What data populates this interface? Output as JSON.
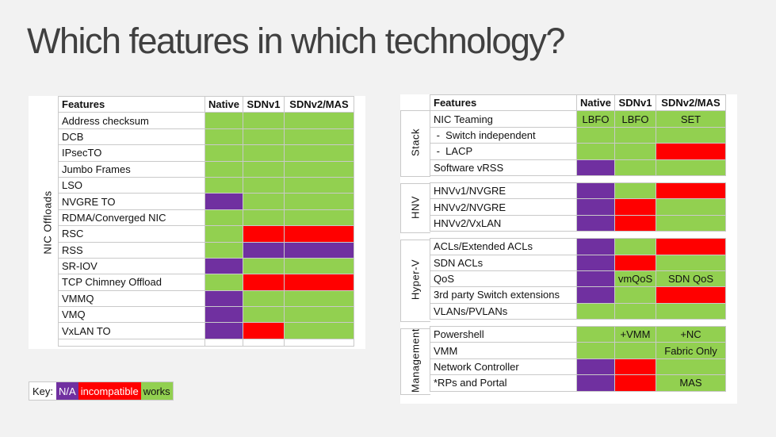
{
  "title": "Which features in which technology?",
  "headers": {
    "features": "Features",
    "native": "Native",
    "sdnv1": "SDNv1",
    "sdnv2": "SDNv2/MAS"
  },
  "left_table": {
    "group_label": "NIC Offloads",
    "rows": [
      {
        "feature": "Address checksum",
        "native": {
          "status": "works",
          "text": ""
        },
        "sdnv1": {
          "status": "works",
          "text": ""
        },
        "sdnv2": {
          "status": "works",
          "text": ""
        }
      },
      {
        "feature": "DCB",
        "native": {
          "status": "works",
          "text": ""
        },
        "sdnv1": {
          "status": "works",
          "text": ""
        },
        "sdnv2": {
          "status": "works",
          "text": ""
        }
      },
      {
        "feature": "IPsecTO",
        "native": {
          "status": "works",
          "text": ""
        },
        "sdnv1": {
          "status": "works",
          "text": ""
        },
        "sdnv2": {
          "status": "works",
          "text": ""
        }
      },
      {
        "feature": "Jumbo Frames",
        "native": {
          "status": "works",
          "text": ""
        },
        "sdnv1": {
          "status": "works",
          "text": ""
        },
        "sdnv2": {
          "status": "works",
          "text": ""
        }
      },
      {
        "feature": "LSO",
        "native": {
          "status": "works",
          "text": ""
        },
        "sdnv1": {
          "status": "works",
          "text": ""
        },
        "sdnv2": {
          "status": "works",
          "text": ""
        }
      },
      {
        "feature": "NVGRE TO",
        "native": {
          "status": "na",
          "text": ""
        },
        "sdnv1": {
          "status": "works",
          "text": ""
        },
        "sdnv2": {
          "status": "works",
          "text": ""
        }
      },
      {
        "feature": "RDMA/Converged NIC",
        "native": {
          "status": "works",
          "text": ""
        },
        "sdnv1": {
          "status": "works",
          "text": ""
        },
        "sdnv2": {
          "status": "works",
          "text": ""
        }
      },
      {
        "feature": "RSC",
        "native": {
          "status": "works",
          "text": ""
        },
        "sdnv1": {
          "status": "incompatible",
          "text": ""
        },
        "sdnv2": {
          "status": "incompatible",
          "text": ""
        }
      },
      {
        "feature": "RSS",
        "native": {
          "status": "works",
          "text": ""
        },
        "sdnv1": {
          "status": "na",
          "text": ""
        },
        "sdnv2": {
          "status": "na",
          "text": ""
        }
      },
      {
        "feature": "SR-IOV",
        "native": {
          "status": "na",
          "text": ""
        },
        "sdnv1": {
          "status": "works",
          "text": ""
        },
        "sdnv2": {
          "status": "works",
          "text": ""
        }
      },
      {
        "feature": "TCP Chimney Offload",
        "native": {
          "status": "works",
          "text": ""
        },
        "sdnv1": {
          "status": "incompatible",
          "text": ""
        },
        "sdnv2": {
          "status": "incompatible",
          "text": ""
        }
      },
      {
        "feature": "VMMQ",
        "native": {
          "status": "na",
          "text": ""
        },
        "sdnv1": {
          "status": "works",
          "text": ""
        },
        "sdnv2": {
          "status": "works",
          "text": ""
        }
      },
      {
        "feature": "VMQ",
        "native": {
          "status": "na",
          "text": ""
        },
        "sdnv1": {
          "status": "works",
          "text": ""
        },
        "sdnv2": {
          "status": "works",
          "text": ""
        }
      },
      {
        "feature": "VxLAN TO",
        "native": {
          "status": "na",
          "text": ""
        },
        "sdnv1": {
          "status": "incompatible",
          "text": ""
        },
        "sdnv2": {
          "status": "works",
          "text": ""
        }
      }
    ]
  },
  "right_table": {
    "groups": [
      {
        "label": "Stack",
        "rows": [
          {
            "feature": "NIC Teaming",
            "native": {
              "status": "works",
              "text": "LBFO"
            },
            "sdnv1": {
              "status": "works",
              "text": "LBFO"
            },
            "sdnv2": {
              "status": "works",
              "text": "SET"
            }
          },
          {
            "feature": " -  Switch independent",
            "native": {
              "status": "works",
              "text": ""
            },
            "sdnv1": {
              "status": "works",
              "text": ""
            },
            "sdnv2": {
              "status": "works",
              "text": ""
            }
          },
          {
            "feature": " -  LACP",
            "native": {
              "status": "works",
              "text": ""
            },
            "sdnv1": {
              "status": "works",
              "text": ""
            },
            "sdnv2": {
              "status": "incompatible",
              "text": ""
            }
          },
          {
            "feature": "Software vRSS",
            "native": {
              "status": "na",
              "text": ""
            },
            "sdnv1": {
              "status": "works",
              "text": ""
            },
            "sdnv2": {
              "status": "works",
              "text": ""
            }
          }
        ]
      },
      {
        "label": "HNV",
        "rows": [
          {
            "feature": "HNVv1/NVGRE",
            "native": {
              "status": "na",
              "text": ""
            },
            "sdnv1": {
              "status": "works",
              "text": ""
            },
            "sdnv2": {
              "status": "incompatible",
              "text": ""
            }
          },
          {
            "feature": "HNVv2/NVGRE",
            "native": {
              "status": "na",
              "text": ""
            },
            "sdnv1": {
              "status": "incompatible",
              "text": ""
            },
            "sdnv2": {
              "status": "works",
              "text": ""
            }
          },
          {
            "feature": "HNVv2/VxLAN",
            "native": {
              "status": "na",
              "text": ""
            },
            "sdnv1": {
              "status": "incompatible",
              "text": ""
            },
            "sdnv2": {
              "status": "works",
              "text": ""
            }
          }
        ]
      },
      {
        "label": "Hyper-V",
        "rows": [
          {
            "feature": "ACLs/Extended ACLs",
            "native": {
              "status": "na",
              "text": ""
            },
            "sdnv1": {
              "status": "works",
              "text": ""
            },
            "sdnv2": {
              "status": "incompatible",
              "text": ""
            }
          },
          {
            "feature": "SDN ACLs",
            "native": {
              "status": "na",
              "text": ""
            },
            "sdnv1": {
              "status": "incompatible",
              "text": ""
            },
            "sdnv2": {
              "status": "works",
              "text": ""
            }
          },
          {
            "feature": "QoS",
            "native": {
              "status": "na",
              "text": ""
            },
            "sdnv1": {
              "status": "works",
              "text": "vmQoS"
            },
            "sdnv2": {
              "status": "works",
              "text": "SDN QoS"
            }
          },
          {
            "feature": "3rd party Switch extensions",
            "native": {
              "status": "na",
              "text": ""
            },
            "sdnv1": {
              "status": "works",
              "text": ""
            },
            "sdnv2": {
              "status": "incompatible",
              "text": ""
            }
          },
          {
            "feature": "VLANs/PVLANs",
            "native": {
              "status": "works",
              "text": ""
            },
            "sdnv1": {
              "status": "works",
              "text": ""
            },
            "sdnv2": {
              "status": "works",
              "text": ""
            }
          }
        ]
      },
      {
        "label": "Management",
        "rows": [
          {
            "feature": "Powershell",
            "native": {
              "status": "works",
              "text": ""
            },
            "sdnv1": {
              "status": "works",
              "text": "+VMM"
            },
            "sdnv2": {
              "status": "works",
              "text": "+NC"
            }
          },
          {
            "feature": "VMM",
            "native": {
              "status": "works",
              "text": ""
            },
            "sdnv1": {
              "status": "works",
              "text": ""
            },
            "sdnv2": {
              "status": "works",
              "text": "Fabric Only"
            }
          },
          {
            "feature": "Network Controller",
            "native": {
              "status": "na",
              "text": ""
            },
            "sdnv1": {
              "status": "incompatible",
              "text": ""
            },
            "sdnv2": {
              "status": "works",
              "text": ""
            }
          },
          {
            "feature": "*RPs and Portal",
            "native": {
              "status": "na",
              "text": ""
            },
            "sdnv1": {
              "status": "incompatible",
              "text": ""
            },
            "sdnv2": {
              "status": "works",
              "text": "MAS"
            }
          }
        ]
      }
    ]
  },
  "key": {
    "label": "Key:",
    "na": "N/A",
    "incompatible": "incompatible",
    "works": "works"
  },
  "colors": {
    "works": "#92d050",
    "na": "#7030a0",
    "incompatible": "#ff0000"
  }
}
